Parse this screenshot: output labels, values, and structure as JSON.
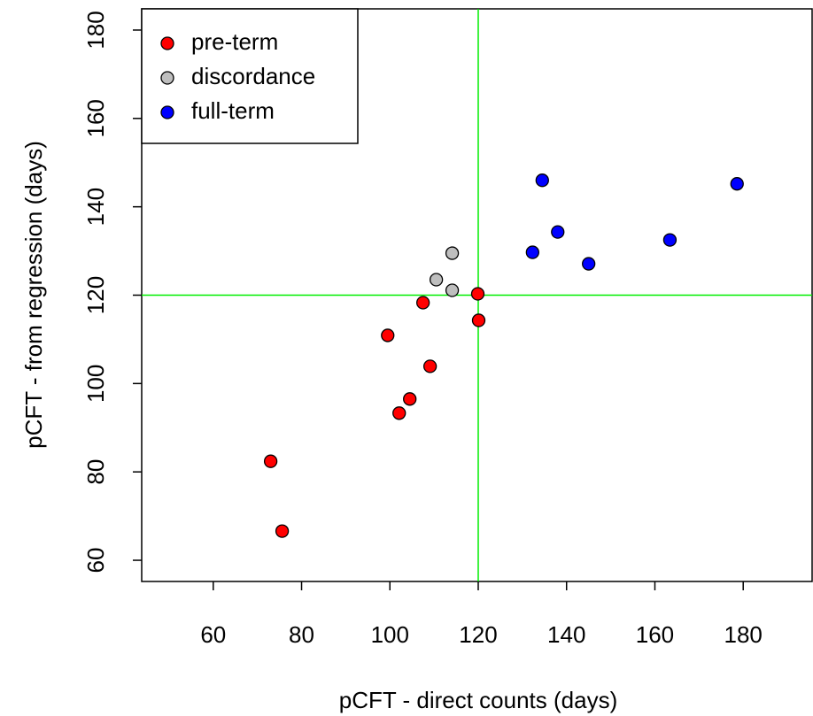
{
  "chart_data": {
    "type": "scatter",
    "xlabel": "pCFT - direct counts (days)",
    "ylabel": "pCFT - from regression (days)",
    "xlim": [
      43.8,
      195.6
    ],
    "ylim": [
      55.2,
      184.8
    ],
    "xticks": [
      60,
      80,
      100,
      120,
      140,
      160,
      180
    ],
    "yticks": [
      60,
      80,
      100,
      120,
      140,
      160,
      180
    ],
    "vlines": [
      120
    ],
    "hlines": [
      120
    ],
    "line_color": "#00ee00",
    "legend": "top-left",
    "series": [
      {
        "name": "pre-term",
        "color": "#ff0000",
        "x": [
          73.0,
          75.6,
          99.5,
          102.1,
          104.5,
          107.5,
          109.1,
          119.9,
          120.1
        ],
        "values": [
          82.4,
          66.6,
          110.9,
          93.3,
          96.5,
          118.3,
          103.9,
          120.3,
          114.3
        ]
      },
      {
        "name": "discordance",
        "color": "#bebebe",
        "x": [
          110.5,
          114.1,
          114.1
        ],
        "values": [
          123.5,
          129.5,
          121.1
        ]
      },
      {
        "name": "full-term",
        "color": "#0000ff",
        "x": [
          132.3,
          134.5,
          138.0,
          145.0,
          163.4,
          178.6
        ],
        "values": [
          129.7,
          146.0,
          134.3,
          127.1,
          132.5,
          145.2
        ]
      }
    ]
  }
}
